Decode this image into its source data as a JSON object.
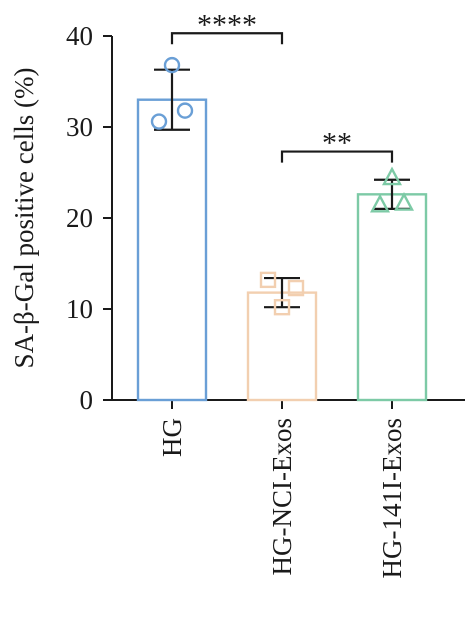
{
  "chart_data": {
    "type": "bar",
    "title": "",
    "ylabel": "SA-β-Gal positive cells (%)",
    "xlabel": "",
    "ylim": [
      0,
      40
    ],
    "yticks": [
      "0",
      "10",
      "20",
      "30",
      "40"
    ],
    "categories": [
      "HG",
      "HG-NCI-Exos",
      "HG-141I-Exos"
    ],
    "values": [
      33.0,
      11.8,
      22.6
    ],
    "error": [
      3.3,
      1.6,
      1.6
    ],
    "colors": [
      "#6a9fd6",
      "#f2cfb0",
      "#7dcaa6"
    ],
    "markers": [
      "circle",
      "square",
      "triangle"
    ],
    "points": [
      [
        36.8,
        30.6,
        31.8
      ],
      [
        13.2,
        12.3,
        10.2
      ],
      [
        24.5,
        21.5,
        21.7
      ]
    ],
    "significance": [
      {
        "from": 0,
        "to": 1,
        "label": "****"
      },
      {
        "from": 1,
        "to": 2,
        "label": "**"
      }
    ]
  }
}
